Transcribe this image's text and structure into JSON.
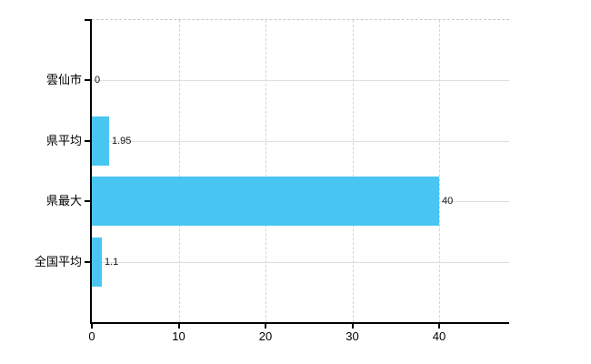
{
  "chart": {
    "background_color": "#ffffff",
    "bar_color": "#49c5f1",
    "axis_color": "#000000",
    "grid_vertical_color": "#d4d4d4",
    "grid_horizontal_color": "#dce1dc",
    "top_border_color": "#c9c9c9",
    "text_color": "#000000"
  },
  "chart_data": {
    "type": "bar",
    "orientation": "horizontal",
    "title": "",
    "xlabel": "",
    "ylabel": "",
    "categories": [
      "雲仙市",
      "県平均",
      "県最大",
      "全国平均"
    ],
    "values": [
      0,
      1.95,
      40,
      1.1
    ],
    "value_labels": [
      "0",
      "1.95",
      "40",
      "1.1"
    ],
    "x_tick_labels": [
      "0",
      "10",
      "20",
      "30",
      "40"
    ],
    "x_tick_values": [
      0,
      10,
      20,
      30,
      40
    ],
    "xlim": [
      0,
      48
    ],
    "grid": true,
    "legend": false
  }
}
